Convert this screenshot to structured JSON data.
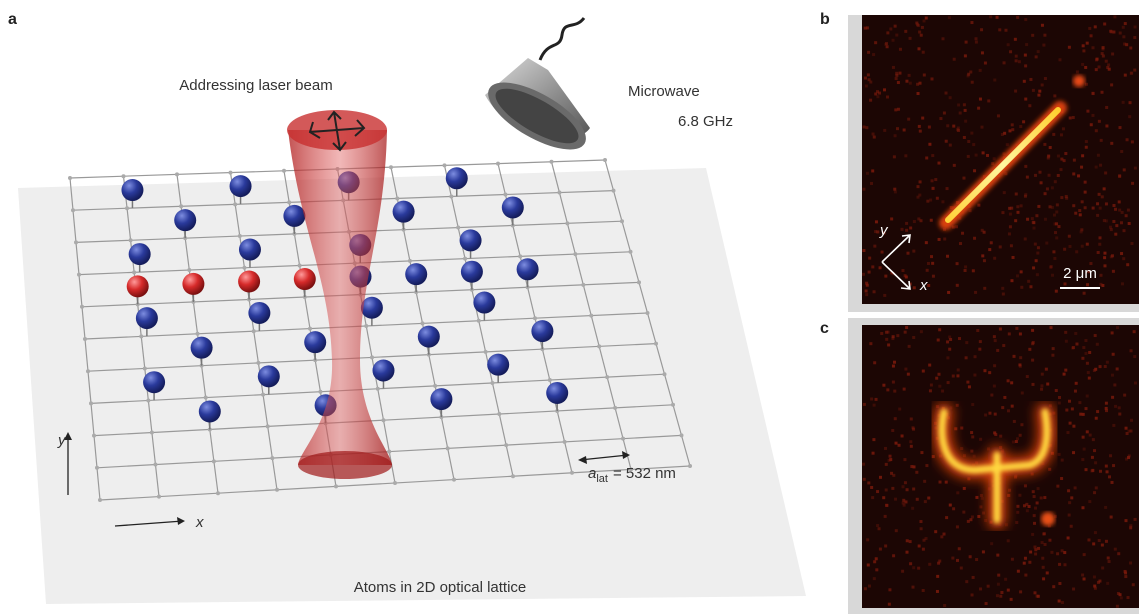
{
  "panel_a": {
    "label": "a",
    "beam_label": "Addressing laser beam",
    "microwave_label": "Microwave",
    "microwave_freq": "6.8 GHz",
    "axis_y": "y",
    "axis_x": "x",
    "lattice_symbol": "a",
    "lattice_subscript": "lat",
    "lattice_value": "= 532 nm",
    "caption": "Atoms in 2D optical lattice"
  },
  "panel_b": {
    "label": "b",
    "axis_y": "y",
    "axis_x": "x",
    "scale": "2 μm"
  },
  "panel_c": {
    "label": "c"
  }
}
